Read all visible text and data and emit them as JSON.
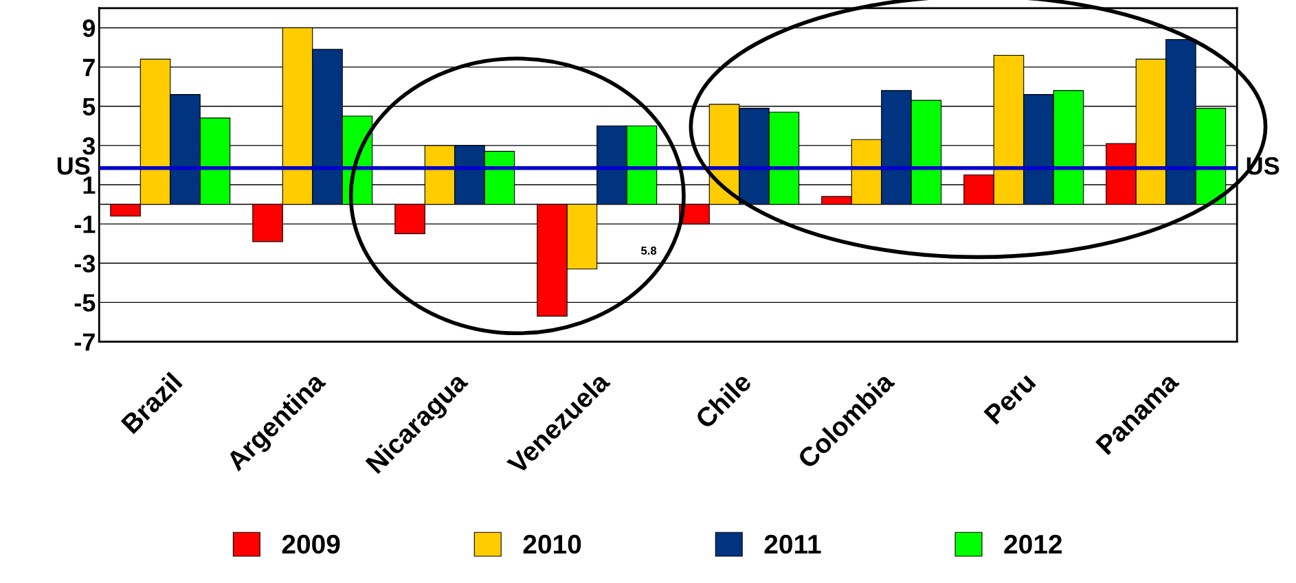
{
  "chart_data": {
    "type": "bar",
    "categories": [
      "Brazil",
      "Argentina",
      "Nicaragua",
      "Venezuela",
      "Chile",
      "Colombia",
      "Peru",
      "Panama"
    ],
    "series": [
      {
        "name": "2009",
        "color": "#ff0000",
        "values": [
          -0.6,
          -1.9,
          -1.5,
          -5.7,
          -1.0,
          0.4,
          1.5,
          3.1
        ]
      },
      {
        "name": "2010",
        "color": "#ffcc00",
        "values": [
          7.4,
          9.0,
          3.0,
          -3.3,
          5.1,
          3.3,
          7.6,
          7.4
        ]
      },
      {
        "name": "2011",
        "color": "#003380",
        "values": [
          5.6,
          7.9,
          3.0,
          4.0,
          4.9,
          5.8,
          5.6,
          8.4
        ]
      },
      {
        "name": "2012",
        "color": "#00ff00",
        "values": [
          4.4,
          4.5,
          2.7,
          4.0,
          4.7,
          5.3,
          5.8,
          4.9
        ]
      }
    ],
    "ylim": [
      -7,
      10
    ],
    "yticks": [
      -7,
      -5,
      -3,
      -1,
      1,
      3,
      5,
      7,
      9
    ],
    "grid": "y",
    "legend": "bottom",
    "ref_lines": [
      {
        "axis": "y",
        "value": 1.85,
        "label": "US",
        "color": "#0000cc"
      }
    ],
    "annotations": [
      "5.8"
    ]
  }
}
